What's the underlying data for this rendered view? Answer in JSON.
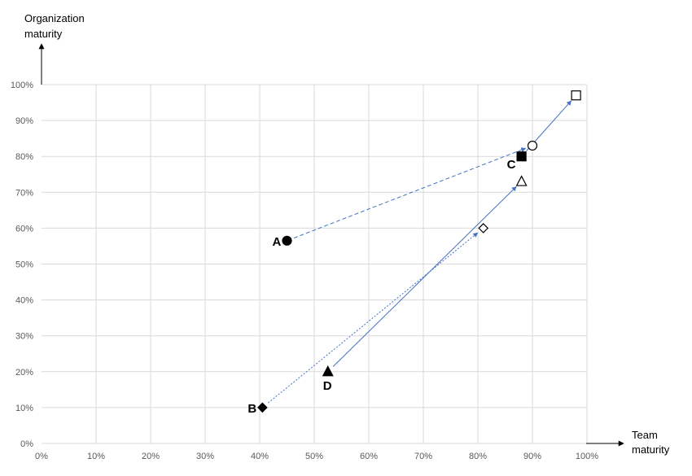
{
  "chart_data": {
    "type": "scatter",
    "x_axis": {
      "title_lines": [
        "Team",
        "maturity"
      ],
      "range": [
        0,
        100
      ],
      "ticks": [
        "0%",
        "10%",
        "20%",
        "30%",
        "40%",
        "50%",
        "60%",
        "70%",
        "80%",
        "90%",
        "100%"
      ]
    },
    "y_axis": {
      "title_lines": [
        "Organization",
        "maturity"
      ],
      "range": [
        0,
        100
      ],
      "ticks": [
        "0%",
        "10%",
        "20%",
        "30%",
        "40%",
        "50%",
        "60%",
        "70%",
        "80%",
        "90%",
        "100%"
      ]
    },
    "grid": true,
    "points": [
      {
        "id": "A",
        "label": "A",
        "x": 45,
        "y": 56.5,
        "marker": "circle",
        "filled": true
      },
      {
        "id": "B",
        "label": "B",
        "x": 40.5,
        "y": 10,
        "marker": "diamond",
        "filled": true
      },
      {
        "id": "C",
        "label": "C",
        "x": 88,
        "y": 80,
        "marker": "square",
        "filled": true
      },
      {
        "id": "D",
        "label": "D",
        "x": 52.5,
        "y": 20,
        "marker": "triangle",
        "filled": true
      },
      {
        "id": "A2",
        "label": "",
        "x": 90,
        "y": 83,
        "marker": "circle",
        "filled": false
      },
      {
        "id": "B2",
        "label": "",
        "x": 81,
        "y": 60,
        "marker": "diamond",
        "filled": false
      },
      {
        "id": "C2",
        "label": "",
        "x": 98,
        "y": 97,
        "marker": "square",
        "filled": false
      },
      {
        "id": "D2",
        "label": "",
        "x": 88,
        "y": 73,
        "marker": "triangle",
        "filled": false
      }
    ],
    "arrows": [
      {
        "from": "A",
        "to": "A2",
        "style": "dashed"
      },
      {
        "from": "B",
        "to": "B2",
        "style": "dotted"
      },
      {
        "from": "C",
        "to": "C2",
        "style": "solid"
      },
      {
        "from": "D",
        "to": "D2",
        "style": "solid"
      }
    ],
    "colors": {
      "arrow": "#4472c4",
      "grid": "#d9d9d9",
      "marker": "#000000"
    }
  }
}
